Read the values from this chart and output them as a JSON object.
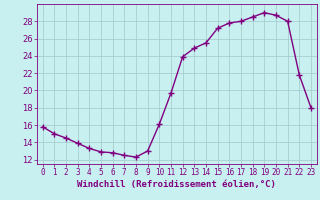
{
  "x": [
    0,
    1,
    2,
    3,
    4,
    5,
    6,
    7,
    8,
    9,
    10,
    11,
    12,
    13,
    14,
    15,
    16,
    17,
    18,
    19,
    20,
    21,
    22,
    23
  ],
  "y": [
    15.8,
    15.0,
    14.5,
    13.9,
    13.3,
    12.9,
    12.8,
    12.5,
    12.3,
    13.0,
    16.1,
    19.7,
    23.9,
    24.9,
    25.5,
    27.2,
    27.8,
    28.0,
    28.5,
    29.0,
    28.7,
    28.0,
    21.8,
    18.0
  ],
  "line_color": "#800080",
  "marker": "+",
  "markersize": 4,
  "linewidth": 1.0,
  "bg_color": "#c8f0f0",
  "grid_color": "#a0c8c8",
  "xlabel": "Windchill (Refroidissement éolien,°C)",
  "xlabel_fontsize": 6.5,
  "tick_fontsize": 6,
  "ylim": [
    11.5,
    30.0
  ],
  "xlim": [
    -0.5,
    23.5
  ],
  "yticks": [
    12,
    14,
    16,
    18,
    20,
    22,
    24,
    26,
    28
  ],
  "xticks": [
    0,
    1,
    2,
    3,
    4,
    5,
    6,
    7,
    8,
    9,
    10,
    11,
    12,
    13,
    14,
    15,
    16,
    17,
    18,
    19,
    20,
    21,
    22,
    23
  ]
}
